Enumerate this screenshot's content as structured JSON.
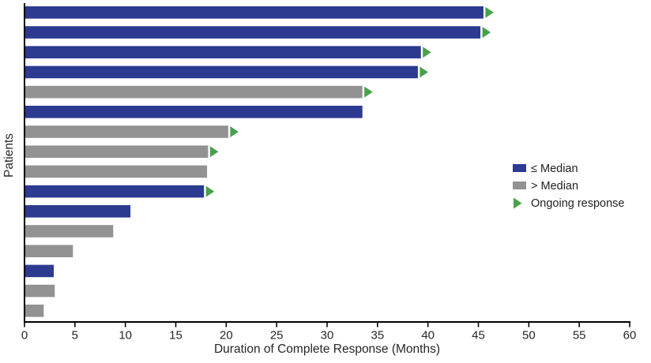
{
  "figure": {
    "background": "#ffffff"
  },
  "chart_data": {
    "type": "bar",
    "orientation": "horizontal",
    "title": "",
    "xlabel": "Duration of Complete Response (Months)",
    "ylabel": "Patients",
    "xlim": [
      0,
      60
    ],
    "xticks": [
      "0",
      "5",
      "10",
      "15",
      "20",
      "25",
      "30",
      "35",
      "40",
      "45",
      "50",
      "55",
      "60"
    ],
    "grid": false,
    "colors": {
      "le_median": "#2c3a8f",
      "gt_median": "#929292",
      "ongoing_marker": "#47a24b",
      "axis_line": "#000000",
      "text": "#262626"
    },
    "legend": {
      "position": "right-middle",
      "entries": [
        {
          "label": "≤ Median",
          "swatch": "square",
          "color": "#2c3a8f"
        },
        {
          "label": "> Median",
          "swatch": "square",
          "color": "#929292"
        },
        {
          "label": "Ongoing response",
          "swatch": "triangle-right",
          "color": "#47a24b"
        }
      ]
    },
    "bars": [
      {
        "patient": 1,
        "group": "le_median",
        "value": 45.5,
        "ongoing": true
      },
      {
        "patient": 2,
        "group": "le_median",
        "value": 45.2,
        "ongoing": true
      },
      {
        "patient": 3,
        "group": "le_median",
        "value": 39.3,
        "ongoing": true
      },
      {
        "patient": 4,
        "group": "le_median",
        "value": 39.0,
        "ongoing": true
      },
      {
        "patient": 5,
        "group": "gt_median",
        "value": 33.5,
        "ongoing": true
      },
      {
        "patient": 6,
        "group": "le_median",
        "value": 33.5,
        "ongoing": false
      },
      {
        "patient": 7,
        "group": "gt_median",
        "value": 20.2,
        "ongoing": true
      },
      {
        "patient": 8,
        "group": "gt_median",
        "value": 18.2,
        "ongoing": true
      },
      {
        "patient": 9,
        "group": "gt_median",
        "value": 18.1,
        "ongoing": false
      },
      {
        "patient": 10,
        "group": "le_median",
        "value": 17.8,
        "ongoing": true
      },
      {
        "patient": 11,
        "group": "le_median",
        "value": 10.5,
        "ongoing": false
      },
      {
        "patient": 12,
        "group": "gt_median",
        "value": 8.8,
        "ongoing": false
      },
      {
        "patient": 13,
        "group": "gt_median",
        "value": 4.8,
        "ongoing": false
      },
      {
        "patient": 14,
        "group": "le_median",
        "value": 2.9,
        "ongoing": false
      },
      {
        "patient": 15,
        "group": "gt_median",
        "value": 3.0,
        "ongoing": false
      },
      {
        "patient": 16,
        "group": "gt_median",
        "value": 1.9,
        "ongoing": false
      }
    ]
  }
}
